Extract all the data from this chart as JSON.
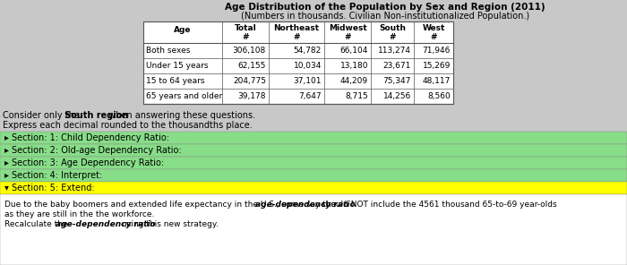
{
  "title1": "Age Distribution of the Population by Sex and Region (2011)",
  "title2": "(Numbers in thousands. Civilian Non-institutionalized Population.)",
  "col_headers": [
    "Age",
    "Total\n#",
    "Northeast\n#",
    "Midwest\n#",
    "South\n#",
    "West\n#"
  ],
  "rows": [
    [
      "Both sexes",
      "306,108",
      "54,782",
      "66,104",
      "113,274",
      "71,946"
    ],
    [
      "Under 15 years",
      "62,155",
      "10,034",
      "13,180",
      "23,671",
      "15,269"
    ],
    [
      "15 to 64 years",
      "204,775",
      "37,101",
      "44,209",
      "75,347",
      "48,117"
    ],
    [
      "65 years and older",
      "39,178",
      "7,647",
      "8,715",
      "14,256",
      "8,560"
    ]
  ],
  "sections": [
    {
      "label": "▸ Section: 1: Child Dependency Ratio:",
      "color": "#88dd88"
    },
    {
      "label": "▸ Section: 2: Old-age Dependency Ratio:",
      "color": "#88dd88"
    },
    {
      "label": "▸ Section: 3: Age Dependency Ratio:",
      "color": "#88dd88"
    },
    {
      "label": "▸ Section: 4: Interpret:",
      "color": "#88dd88"
    },
    {
      "label": "▾ Section: 5: Extend:",
      "color": "#ffff00"
    }
  ],
  "bg_color": "#c8c8c8",
  "table_bg": "#ffffff",
  "bottom_line1_pre": "Due to the baby boomers and extended life expectancy in the U.S., some say the ",
  "bottom_line1_bold": "age-dependency ratio",
  "bottom_line1_post": " should NOT include the 4561 thousand 65-to-69 year-olds",
  "bottom_line2": "as they are still in the the workforce.",
  "bottom_line3_pre": "Recalculate the ",
  "bottom_line3_bold": "age-dependency ratio",
  "bottom_line3_post": " using this new strategy."
}
